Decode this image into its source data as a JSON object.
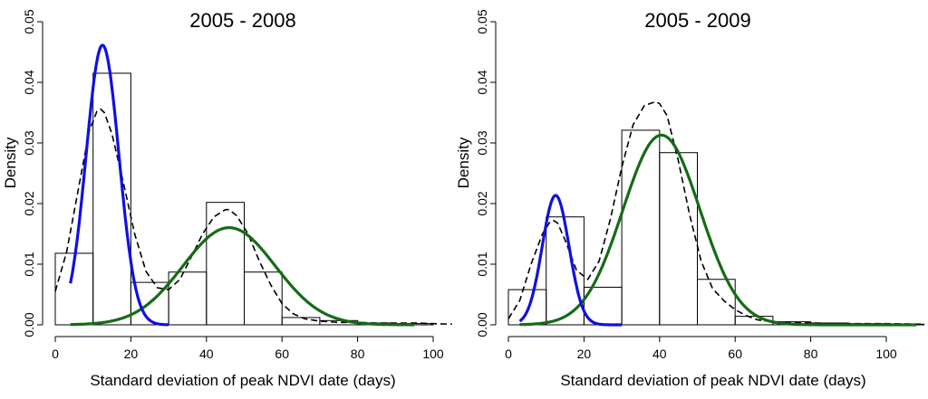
{
  "chart_data": [
    {
      "type": "histogram",
      "title": "2005 - 2008",
      "xlabel": "Standard deviation of peak NDVI date (days)",
      "ylabel": "Density",
      "xlim": [
        0,
        105
      ],
      "ylim": [
        0,
        0.05
      ],
      "x_ticks": [
        "0",
        "20",
        "40",
        "60",
        "80",
        "100"
      ],
      "y_ticks": [
        "0.00",
        "0.01",
        "0.02",
        "0.03",
        "0.04",
        "0.05"
      ],
      "bins": [
        {
          "x0": 0,
          "x1": 10,
          "density": 0.0118
        },
        {
          "x0": 10,
          "x1": 20,
          "density": 0.0415
        },
        {
          "x0": 20,
          "x1": 30,
          "density": 0.007
        },
        {
          "x0": 30,
          "x1": 40,
          "density": 0.0087
        },
        {
          "x0": 40,
          "x1": 50,
          "density": 0.0202
        },
        {
          "x0": 50,
          "x1": 60,
          "density": 0.0087
        },
        {
          "x0": 60,
          "x1": 70,
          "density": 0.0012
        },
        {
          "x0": 70,
          "x1": 80,
          "density": 0.0007
        },
        {
          "x0": 80,
          "x1": 90,
          "density": 0.0003
        },
        {
          "x0": 90,
          "x1": 100,
          "density": 0.0002
        }
      ],
      "series": [
        {
          "name": "component 1",
          "color": "#1010e0",
          "kind": "normal",
          "weight": 0.503,
          "mean": 12.5,
          "sd": 4.35,
          "x_range": [
            4,
            30
          ]
        },
        {
          "name": "component 2",
          "color": "#156b15",
          "kind": "normal",
          "weight": 0.49,
          "mean": 46,
          "sd": 12.2,
          "x_range": [
            4,
            95
          ]
        },
        {
          "name": "kernel density",
          "color": "#000000",
          "kind": "points",
          "dashed": true,
          "x": [
            0,
            3,
            6,
            9,
            11,
            12,
            13,
            15,
            18,
            21,
            24,
            27,
            30,
            33,
            36,
            39,
            42,
            45,
            46,
            48,
            51,
            54,
            57,
            60,
            63,
            66,
            70,
            75,
            80,
            85,
            90,
            95,
            100,
            105
          ],
          "y": [
            0.0055,
            0.012,
            0.022,
            0.032,
            0.0352,
            0.0356,
            0.035,
            0.0315,
            0.0235,
            0.015,
            0.0088,
            0.0061,
            0.0058,
            0.0075,
            0.0112,
            0.015,
            0.0178,
            0.019,
            0.019,
            0.018,
            0.015,
            0.0105,
            0.0066,
            0.0035,
            0.0018,
            0.001,
            0.0006,
            0.0004,
            0.0004,
            0.0003,
            0.0003,
            0.0003,
            0.0002,
            0.0001
          ]
        }
      ]
    },
    {
      "type": "histogram",
      "title": "2005 - 2009",
      "xlabel": "Standard deviation of peak NDVI date (days)",
      "ylabel": "Density",
      "xlim": [
        0,
        110
      ],
      "ylim": [
        0,
        0.05
      ],
      "x_ticks": [
        "0",
        "20",
        "40",
        "60",
        "80",
        "100"
      ],
      "y_ticks": [
        "0.00",
        "0.01",
        "0.02",
        "0.03",
        "0.04",
        "0.05"
      ],
      "bins": [
        {
          "x0": 0,
          "x1": 10,
          "density": 0.0058
        },
        {
          "x0": 10,
          "x1": 20,
          "density": 0.0178
        },
        {
          "x0": 20,
          "x1": 30,
          "density": 0.0062
        },
        {
          "x0": 30,
          "x1": 40,
          "density": 0.0321
        },
        {
          "x0": 40,
          "x1": 50,
          "density": 0.0284
        },
        {
          "x0": 50,
          "x1": 60,
          "density": 0.0075
        },
        {
          "x0": 60,
          "x1": 70,
          "density": 0.0014
        },
        {
          "x0": 70,
          "x1": 80,
          "density": 0.0005
        },
        {
          "x0": 80,
          "x1": 90,
          "density": 0.0003
        },
        {
          "x0": 90,
          "x1": 100,
          "density": 0.0002
        },
        {
          "x0": 100,
          "x1": 110,
          "density": 0.0001
        }
      ],
      "series": [
        {
          "name": "component 1",
          "color": "#1010e0",
          "kind": "normal",
          "weight": 0.19,
          "mean": 12.5,
          "sd": 3.55,
          "x_range": [
            3,
            30
          ]
        },
        {
          "name": "component 2",
          "color": "#156b15",
          "kind": "normal",
          "weight": 0.8,
          "mean": 40.5,
          "sd": 10.2,
          "x_range": [
            3,
            108
          ]
        },
        {
          "name": "kernel density",
          "color": "#000000",
          "kind": "points",
          "dashed": true,
          "x": [
            0,
            3,
            6,
            9,
            11,
            12,
            13,
            15,
            18,
            21,
            24,
            27,
            30,
            33,
            36,
            39,
            40,
            42,
            45,
            48,
            51,
            54,
            57,
            60,
            63,
            66,
            70,
            75,
            80,
            90,
            100,
            110
          ],
          "y": [
            0.001,
            0.004,
            0.01,
            0.015,
            0.017,
            0.0172,
            0.0168,
            0.014,
            0.009,
            0.0075,
            0.0105,
            0.0175,
            0.026,
            0.033,
            0.0362,
            0.0368,
            0.0365,
            0.0345,
            0.027,
            0.018,
            0.0105,
            0.006,
            0.004,
            0.0025,
            0.0015,
            0.0008,
            0.0005,
            0.0004,
            0.0003,
            0.0002,
            0.0002,
            0.0001
          ]
        }
      ]
    }
  ]
}
